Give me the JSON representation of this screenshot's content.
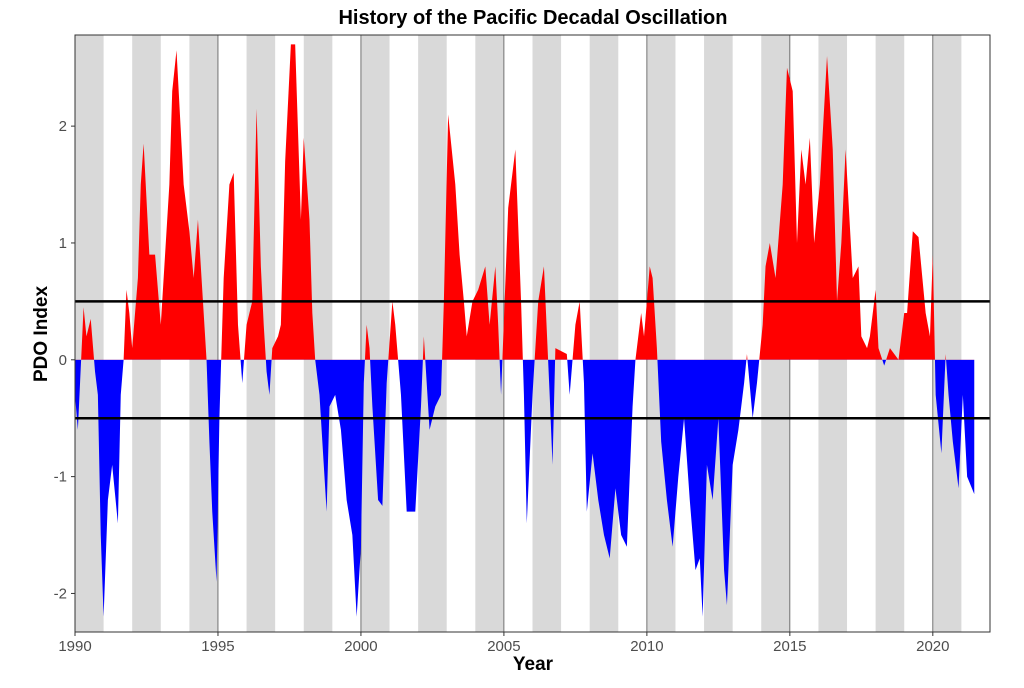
{
  "chart_data": {
    "type": "area",
    "title": "History of the Pacific Decadal Oscillation",
    "x_label": "Year",
    "y_label": "PDO Index",
    "x": [
      1990.0,
      1990.1,
      1990.3,
      1990.4,
      1990.55,
      1990.7,
      1990.8,
      1990.9,
      1991.0,
      1991.15,
      1991.3,
      1991.5,
      1991.6,
      1991.7,
      1991.8,
      1991.9,
      1992.0,
      1992.2,
      1992.3,
      1992.4,
      1992.6,
      1992.8,
      1993.0,
      1993.3,
      1993.4,
      1993.55,
      1993.8,
      1994.0,
      1994.15,
      1994.3,
      1994.5,
      1994.6,
      1994.7,
      1994.8,
      1994.95,
      1995.05,
      1995.2,
      1995.4,
      1995.55,
      1995.7,
      1995.85,
      1996.0,
      1996.2,
      1996.35,
      1996.5,
      1996.6,
      1996.7,
      1996.8,
      1996.9,
      1997.1,
      1997.2,
      1997.35,
      1997.55,
      1997.7,
      1997.9,
      1998.0,
      1998.2,
      1998.3,
      1998.4,
      1998.55,
      1998.8,
      1998.9,
      1999.1,
      1999.3,
      1999.5,
      1999.7,
      1999.85,
      2000.0,
      2000.1,
      2000.2,
      2000.3,
      2000.4,
      2000.6,
      2000.75,
      2000.9,
      2001.1,
      2001.2,
      2001.4,
      2001.6,
      2001.9,
      2002.1,
      2002.2,
      2002.4,
      2002.6,
      2002.8,
      2002.9,
      2003.05,
      2003.3,
      2003.45,
      2003.6,
      2003.7,
      2003.9,
      2004.1,
      2004.35,
      2004.5,
      2004.7,
      2004.8,
      2004.9,
      2005.15,
      2005.4,
      2005.6,
      2005.7,
      2005.8,
      2006.0,
      2006.2,
      2006.4,
      2006.6,
      2006.7,
      2006.8,
      2007.2,
      2007.3,
      2007.5,
      2007.65,
      2007.8,
      2007.9,
      2008.1,
      2008.3,
      2008.5,
      2008.7,
      2008.9,
      2009.1,
      2009.3,
      2009.5,
      2009.6,
      2009.8,
      2009.9,
      2010.1,
      2010.2,
      2010.35,
      2010.5,
      2010.7,
      2010.9,
      2011.1,
      2011.3,
      2011.5,
      2011.7,
      2011.85,
      2011.95,
      2012.1,
      2012.3,
      2012.5,
      2012.7,
      2012.8,
      2013.0,
      2013.2,
      2013.4,
      2013.5,
      2013.7,
      2013.85,
      2014.05,
      2014.15,
      2014.3,
      2014.5,
      2014.75,
      2014.9,
      2015.1,
      2015.25,
      2015.4,
      2015.55,
      2015.7,
      2015.85,
      2016.05,
      2016.3,
      2016.5,
      2016.65,
      2016.8,
      2016.95,
      2017.2,
      2017.4,
      2017.5,
      2017.7,
      2017.8,
      2018.0,
      2018.1,
      2018.3,
      2018.5,
      2018.8,
      2019.0,
      2019.1,
      2019.3,
      2019.5,
      2019.75,
      2019.9,
      2020.0,
      2020.1,
      2020.3,
      2020.45,
      2020.55,
      2020.7,
      2020.9,
      2021.05,
      2021.2,
      2021.45
    ],
    "values": [
      -0.3,
      -0.6,
      0.45,
      0.2,
      0.35,
      -0.1,
      -0.3,
      -1.5,
      -2.2,
      -1.2,
      -0.9,
      -1.4,
      -0.3,
      0,
      0.6,
      0.4,
      0.1,
      0.7,
      1.5,
      1.85,
      0.9,
      0.9,
      0.3,
      1.5,
      2.3,
      2.65,
      1.5,
      1.1,
      0.7,
      1.2,
      0.4,
      0,
      -0.7,
      -1.3,
      -1.9,
      -0.5,
      0.7,
      1.5,
      1.6,
      0.3,
      -0.2,
      0.3,
      0.5,
      2.15,
      0.8,
      0.3,
      -0.1,
      -0.3,
      0.1,
      0.2,
      0.3,
      1.7,
      2.7,
      2.7,
      1.2,
      1.9,
      1.2,
      0.4,
      0,
      -0.3,
      -1.3,
      -0.4,
      -0.3,
      -0.6,
      -1.2,
      -1.5,
      -2.2,
      -1.6,
      -0.2,
      0.3,
      0.1,
      -0.4,
      -1.2,
      -1.25,
      -0.2,
      0.5,
      0.3,
      -0.3,
      -1.3,
      -1.3,
      -0.4,
      0.2,
      -0.6,
      -0.4,
      -0.3,
      0.5,
      2.1,
      1.5,
      0.9,
      0.5,
      0.2,
      0.5,
      0.6,
      0.8,
      0.3,
      0.8,
      0.3,
      -0.3,
      1.3,
      1.8,
      0.5,
      -0.3,
      -1.4,
      -0.3,
      0.5,
      0.8,
      -0.3,
      -0.9,
      0.1,
      0.05,
      -0.3,
      0.3,
      0.5,
      -0.2,
      -1.3,
      -0.8,
      -1.2,
      -1.5,
      -1.7,
      -1.1,
      -1.5,
      -1.6,
      -0.4,
      0,
      0.4,
      0.2,
      0.8,
      0.7,
      0.1,
      -0.7,
      -1.2,
      -1.6,
      -1.0,
      -0.5,
      -1.2,
      -1.8,
      -1.7,
      -2.2,
      -0.9,
      -1.2,
      -0.5,
      -1.8,
      -2.1,
      -0.9,
      -0.6,
      -0.2,
      0.05,
      -0.5,
      -0.2,
      0.3,
      0.8,
      1.0,
      0.7,
      1.5,
      2.5,
      2.3,
      1.0,
      1.8,
      1.5,
      1.9,
      1.0,
      1.5,
      2.6,
      1.8,
      0.5,
      1.0,
      1.8,
      0.7,
      0.8,
      0.2,
      0.1,
      0.2,
      0.6,
      0.1,
      -0.05,
      0.1,
      0,
      0.4,
      0.4,
      1.1,
      1.05,
      0.4,
      0.2,
      0.9,
      -0.3,
      -0.8,
      0.05,
      -0.3,
      -0.7,
      -1.1,
      -0.3,
      -1.0,
      -1.15
    ],
    "positive_color": "#ff0000",
    "negative_color": "#0000ff",
    "reference_lines": [
      0.5,
      -0.5
    ],
    "xlim": [
      1990,
      2022
    ],
    "xticks": [
      1990,
      1995,
      2000,
      2005,
      2010,
      2015,
      2020
    ],
    "ylim": [
      -2.33,
      2.78
    ],
    "yticks": [
      -2,
      -1,
      0,
      1,
      2
    ]
  }
}
